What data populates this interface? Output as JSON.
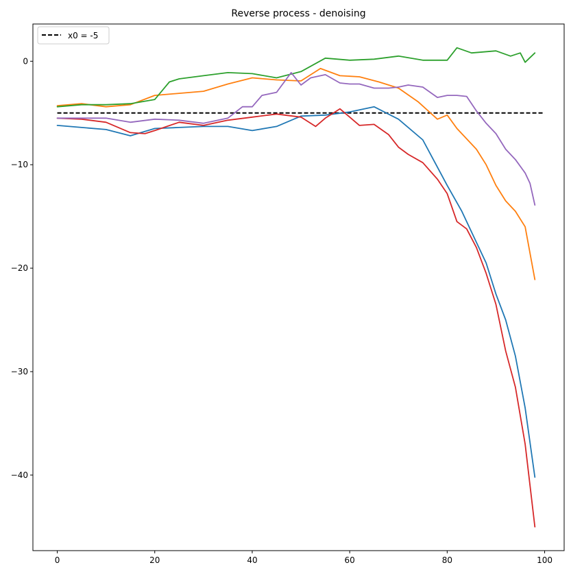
{
  "chart_data": {
    "type": "line",
    "title": "Reverse process - denoising",
    "xlabel": "",
    "ylabel": "",
    "xlim": [
      -5,
      104
    ],
    "ylim": [
      -47.3,
      3.6
    ],
    "xticks": [
      0,
      20,
      40,
      60,
      80,
      100
    ],
    "yticks": [
      0,
      -10,
      -20,
      -30,
      -40
    ],
    "ytick_labels": [
      "0",
      "−10",
      "−20",
      "−30",
      "−40"
    ],
    "grid": false,
    "legend_position": "top-left",
    "reference_line": {
      "label": "x0 = -5",
      "y": -5,
      "x": [
        0,
        100
      ],
      "style": "dashed",
      "color": "#000000"
    },
    "series": [
      {
        "color": "#1f77b4",
        "x": [
          0,
          5,
          10,
          15,
          20,
          25,
          30,
          35,
          40,
          45,
          50,
          55,
          60,
          65,
          70,
          75,
          80,
          83,
          86,
          88,
          90,
          92,
          94,
          96,
          98
        ],
        "values": [
          -6.2,
          -6.4,
          -6.6,
          -7.2,
          -6.5,
          -6.4,
          -6.3,
          -6.3,
          -6.7,
          -6.3,
          -5.3,
          -5.2,
          -4.9,
          -4.4,
          -5.6,
          -7.6,
          -12,
          -14.5,
          -17.5,
          -19.5,
          -22.5,
          -25,
          -28.5,
          -33.5,
          -40.2
        ]
      },
      {
        "color": "#ff7f0e",
        "x": [
          0,
          5,
          10,
          15,
          20,
          25,
          30,
          35,
          40,
          45,
          50,
          54,
          58,
          62,
          66,
          70,
          74,
          78,
          80,
          82,
          84,
          86,
          88,
          90,
          92,
          94,
          96,
          98
        ],
        "values": [
          -4.3,
          -4.1,
          -4.4,
          -4.2,
          -3.3,
          -3.1,
          -2.9,
          -2.2,
          -1.6,
          -1.8,
          -1.9,
          -0.7,
          -1.4,
          -1.5,
          -2,
          -2.6,
          -3.9,
          -5.6,
          -5.2,
          -6.5,
          -7.5,
          -8.5,
          -10,
          -12,
          -13.5,
          -14.5,
          -16,
          -21.1
        ]
      },
      {
        "color": "#2ca02c",
        "x": [
          0,
          5,
          10,
          15,
          20,
          23,
          25,
          30,
          35,
          40,
          45,
          50,
          55,
          60,
          65,
          70,
          75,
          80,
          82,
          85,
          90,
          93,
          95,
          96,
          98
        ],
        "values": [
          -4.4,
          -4.2,
          -4.2,
          -4.1,
          -3.7,
          -2,
          -1.7,
          -1.4,
          -1.1,
          -1.2,
          -1.6,
          -1,
          0.3,
          0.1,
          0.2,
          0.5,
          0.1,
          0.1,
          1.3,
          0.8,
          1,
          0.5,
          0.8,
          -0.1,
          0.8
        ]
      },
      {
        "color": "#d62728",
        "x": [
          0,
          5,
          10,
          15,
          18,
          20,
          25,
          30,
          35,
          40,
          45,
          50,
          53,
          55,
          58,
          62,
          65,
          68,
          70,
          72,
          75,
          78,
          80,
          82,
          84,
          86,
          88,
          90,
          92,
          94,
          96,
          97,
          98
        ],
        "values": [
          -5.5,
          -5.6,
          -5.9,
          -6.9,
          -7,
          -6.7,
          -5.9,
          -6.2,
          -5.7,
          -5.4,
          -5.1,
          -5.4,
          -6.3,
          -5.5,
          -4.6,
          -6.2,
          -6.1,
          -7.1,
          -8.3,
          -9,
          -9.8,
          -11.4,
          -12.8,
          -15.5,
          -16.2,
          -18,
          -20.5,
          -23.5,
          -28,
          -31.5,
          -37,
          -41,
          -45
        ]
      },
      {
        "color": "#9467bd",
        "x": [
          0,
          5,
          10,
          15,
          20,
          25,
          30,
          35,
          38,
          40,
          42,
          45,
          48,
          50,
          52,
          55,
          58,
          60,
          62,
          65,
          68,
          70,
          72,
          75,
          78,
          80,
          82,
          84,
          86,
          88,
          90,
          92,
          94,
          96,
          97,
          98
        ],
        "values": [
          -5.5,
          -5.5,
          -5.5,
          -5.9,
          -5.6,
          -5.7,
          -6,
          -5.5,
          -4.4,
          -4.4,
          -3.3,
          -3,
          -1.1,
          -2.3,
          -1.6,
          -1.3,
          -2.1,
          -2.2,
          -2.2,
          -2.6,
          -2.6,
          -2.5,
          -2.3,
          -2.5,
          -3.5,
          -3.3,
          -3.3,
          -3.4,
          -4.8,
          -6,
          -7,
          -8.5,
          -9.5,
          -10.8,
          -11.8,
          -13.9
        ]
      }
    ]
  }
}
